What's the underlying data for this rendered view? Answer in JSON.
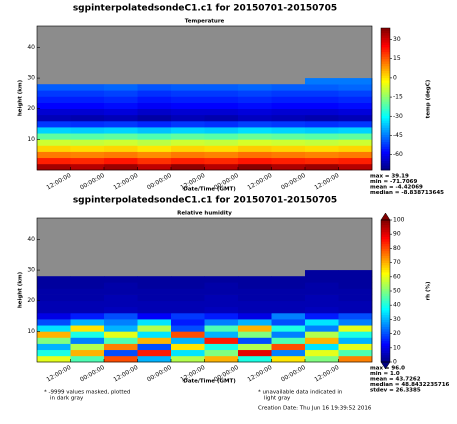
{
  "chart_data": [
    {
      "type": "heatmap",
      "title": "sgpinterpolatedsondeC1.c1 for 20150701-20150705",
      "subtitle": "Temperature",
      "xlabel": "Date/Time (GMT)",
      "ylabel": "height (km)",
      "colorbar_label": "temp (degC)",
      "colormap": "jet",
      "xlim": [
        0,
        120
      ],
      "ylim": [
        0,
        47
      ],
      "xbins": [
        0,
        12,
        24,
        36,
        48,
        60,
        72,
        84,
        96,
        108,
        120
      ],
      "ybins": [
        0,
        2,
        4,
        6,
        8,
        10,
        12,
        14,
        16,
        18,
        20,
        22,
        24,
        26,
        28,
        30,
        32,
        34,
        36,
        38,
        40,
        42,
        44,
        46,
        48
      ],
      "xticks": [
        {
          "value": 12,
          "label": "12:00:00"
        },
        {
          "value": 24,
          "label": "00:00:00"
        },
        {
          "value": 36,
          "label": "12:00:00"
        },
        {
          "value": 48,
          "label": "00:00:00"
        },
        {
          "value": 60,
          "label": "12:00:00"
        },
        {
          "value": 72,
          "label": "00:00:00"
        },
        {
          "value": 84,
          "label": "12:00:00"
        },
        {
          "value": 96,
          "label": "00:00:00"
        },
        {
          "value": 108,
          "label": "12:00:00"
        }
      ],
      "yticks": [
        10,
        20,
        30,
        40
      ],
      "clim": [
        -72,
        39
      ],
      "cticks": [
        30,
        15,
        0,
        -15,
        -30,
        -45,
        -60
      ],
      "colorbar_extend": "none",
      "values": [
        [
          35,
          33,
          36,
          32,
          37,
          33,
          38,
          34,
          36,
          33
        ],
        [
          22,
          21,
          23,
          20,
          22,
          21,
          23,
          22,
          21,
          22
        ],
        [
          12,
          11,
          12,
          10,
          12,
          11,
          13,
          12,
          11,
          12
        ],
        [
          2,
          1,
          2,
          0,
          2,
          1,
          3,
          2,
          1,
          2
        ],
        [
          -8,
          -9,
          -8,
          -10,
          -8,
          -9,
          -7,
          -8,
          -9,
          -8
        ],
        [
          -20,
          -21,
          -20,
          -22,
          -20,
          -21,
          -19,
          -20,
          -21,
          -20
        ],
        [
          -35,
          -36,
          -35,
          -37,
          -35,
          -36,
          -34,
          -35,
          -36,
          -35
        ],
        [
          -52,
          -53,
          -52,
          -54,
          -52,
          -53,
          -51,
          -52,
          -53,
          -52
        ],
        [
          -66,
          -67,
          -66,
          -68,
          -66,
          -67,
          -65,
          -66,
          -67,
          -66
        ],
        [
          -63,
          -63,
          -62,
          -64,
          -63,
          -63,
          -62,
          -63,
          -63,
          -62
        ],
        [
          -58,
          -58,
          -57,
          -59,
          -58,
          -58,
          -57,
          -58,
          -58,
          -57
        ],
        [
          -55,
          -55,
          -54,
          -56,
          -55,
          -55,
          -54,
          -55,
          -55,
          -54
        ],
        [
          -52,
          -52,
          -51,
          -53,
          -52,
          -52,
          -51,
          -52,
          -52,
          -51
        ],
        [
          -48,
          -48,
          -47,
          -49,
          -48,
          -48,
          -47,
          -48,
          -48,
          -47
        ],
        [
          null,
          null,
          null,
          null,
          null,
          null,
          null,
          null,
          -45,
          -45
        ],
        [
          null,
          null,
          null,
          null,
          null,
          null,
          null,
          null,
          null,
          null
        ],
        [
          null,
          null,
          null,
          null,
          null,
          null,
          null,
          null,
          null,
          null
        ],
        [
          null,
          null,
          null,
          null,
          null,
          null,
          null,
          null,
          null,
          null
        ],
        [
          null,
          null,
          null,
          null,
          null,
          null,
          null,
          null,
          null,
          null
        ],
        [
          null,
          null,
          null,
          null,
          null,
          null,
          null,
          null,
          null,
          null
        ],
        [
          null,
          null,
          null,
          null,
          null,
          null,
          null,
          null,
          null,
          null
        ],
        [
          null,
          null,
          null,
          null,
          null,
          null,
          null,
          null,
          null,
          null
        ],
        [
          null,
          null,
          null,
          null,
          null,
          null,
          null,
          null,
          null,
          null
        ],
        [
          null,
          null,
          null,
          null,
          null,
          null,
          null,
          null,
          null,
          null
        ]
      ],
      "stats": [
        "max = 39.19",
        "min = -71.7069",
        "mean = -4.42069",
        "median = -8.838713645"
      ]
    },
    {
      "type": "heatmap",
      "title": "sgpinterpolatedsondeC1.c1 for 20150701-20150705",
      "subtitle": "Relative humidity",
      "xlabel": "Date/Time (GMT)",
      "ylabel": "height (km)",
      "colorbar_label": "rh (%)",
      "colormap": "jet",
      "xlim": [
        0,
        120
      ],
      "ylim": [
        0,
        47
      ],
      "xbins": [
        0,
        12,
        24,
        36,
        48,
        60,
        72,
        84,
        96,
        108,
        120
      ],
      "ybins": [
        0,
        2,
        4,
        6,
        8,
        10,
        12,
        14,
        16,
        18,
        20,
        22,
        24,
        26,
        28,
        30,
        32,
        34,
        36,
        38,
        40,
        42,
        44,
        46,
        48
      ],
      "xticks": [
        {
          "value": 12,
          "label": "12:00:00"
        },
        {
          "value": 24,
          "label": "00:00:00"
        },
        {
          "value": 36,
          "label": "12:00:00"
        },
        {
          "value": 48,
          "label": "00:00:00"
        },
        {
          "value": 60,
          "label": "12:00:00"
        },
        {
          "value": 72,
          "label": "00:00:00"
        },
        {
          "value": 84,
          "label": "12:00:00"
        },
        {
          "value": 96,
          "label": "00:00:00"
        },
        {
          "value": 108,
          "label": "12:00:00"
        }
      ],
      "yticks": [
        10,
        20,
        30,
        40
      ],
      "clim": [
        0,
        100
      ],
      "cticks": [
        0,
        10,
        20,
        30,
        40,
        50,
        60,
        70,
        80,
        90,
        100
      ],
      "colorbar_extend": "both",
      "values": [
        [
          60,
          45,
          80,
          30,
          55,
          70,
          40,
          65,
          50,
          75
        ],
        [
          40,
          70,
          20,
          85,
          35,
          50,
          90,
          25,
          60,
          45
        ],
        [
          30,
          55,
          75,
          20,
          65,
          40,
          55,
          80,
          35,
          60
        ],
        [
          50,
          25,
          45,
          70,
          30,
          85,
          20,
          45,
          70,
          30
        ],
        [
          70,
          40,
          60,
          35,
          80,
          30,
          50,
          25,
          55,
          40
        ],
        [
          35,
          65,
          30,
          55,
          20,
          45,
          70,
          40,
          25,
          60
        ],
        [
          20,
          30,
          25,
          35,
          15,
          25,
          30,
          20,
          35,
          25
        ],
        [
          10,
          15,
          20,
          12,
          18,
          15,
          10,
          25,
          15,
          20
        ],
        [
          5,
          5,
          6,
          5,
          5,
          6,
          5,
          5,
          6,
          5
        ],
        [
          5,
          5,
          5,
          5,
          5,
          5,
          5,
          5,
          5,
          5
        ],
        [
          4,
          4,
          5,
          4,
          4,
          5,
          4,
          4,
          5,
          4
        ],
        [
          4,
          4,
          4,
          4,
          4,
          4,
          4,
          4,
          4,
          4
        ],
        [
          3,
          3,
          4,
          3,
          3,
          4,
          3,
          3,
          4,
          3
        ],
        [
          3,
          3,
          3,
          3,
          3,
          3,
          3,
          3,
          3,
          3
        ],
        [
          null,
          null,
          null,
          null,
          null,
          null,
          null,
          null,
          3,
          3
        ],
        [
          null,
          null,
          null,
          null,
          null,
          null,
          null,
          null,
          null,
          null
        ],
        [
          null,
          null,
          null,
          null,
          null,
          null,
          null,
          null,
          null,
          null
        ],
        [
          null,
          null,
          null,
          null,
          null,
          null,
          null,
          null,
          null,
          null
        ],
        [
          null,
          null,
          null,
          null,
          null,
          null,
          null,
          null,
          null,
          null
        ],
        [
          null,
          null,
          null,
          null,
          null,
          null,
          null,
          null,
          null,
          null
        ],
        [
          null,
          null,
          null,
          null,
          null,
          null,
          null,
          null,
          null,
          null
        ],
        [
          null,
          null,
          null,
          null,
          null,
          null,
          null,
          null,
          null,
          null
        ],
        [
          null,
          null,
          null,
          null,
          null,
          null,
          null,
          null,
          null,
          null
        ],
        [
          null,
          null,
          null,
          null,
          null,
          null,
          null,
          null,
          null,
          null
        ]
      ],
      "stats": [
        "max = 96.0",
        "min = 1.0",
        "mean = 43.7262",
        "median = 48.8432235716",
        "stdev = 26.3385"
      ],
      "footnotes": [
        "* -9999 values masked, plotted",
        "in dark gray",
        "* unavailable data indicated in",
        "light gray",
        "Creation Date: Thu Jun 16 19:39:52 2016"
      ]
    }
  ]
}
